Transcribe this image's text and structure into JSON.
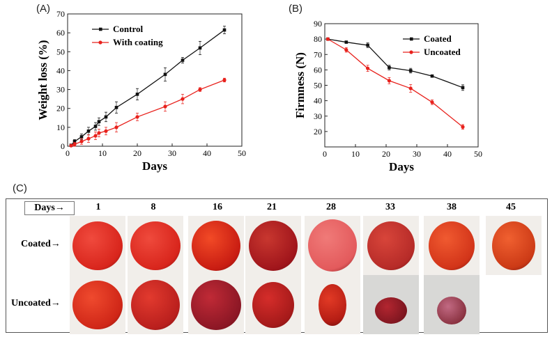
{
  "panels": {
    "a": "(A)",
    "b": "(B)",
    "c": "(C)"
  },
  "chart_data": [
    {
      "type": "line",
      "panel": "(A)",
      "xlabel": "Days",
      "ylabel": "Weight loss (%)",
      "xlim": [
        0,
        50
      ],
      "ylim": [
        0,
        70
      ],
      "xticks": [
        0,
        10,
        20,
        30,
        40,
        50
      ],
      "yticks": [
        0,
        10,
        20,
        30,
        40,
        50,
        60,
        70
      ],
      "legend": "top-left",
      "series": [
        {
          "name": "Control",
          "color": "#111111",
          "marker": "square",
          "x": [
            1,
            2,
            4,
            6,
            8,
            9,
            11,
            14,
            20,
            28,
            33,
            38,
            45
          ],
          "y": [
            0.5,
            2.5,
            5,
            8,
            10.5,
            13,
            15.5,
            20.5,
            27.5,
            38,
            45.5,
            52,
            61.5
          ],
          "err": [
            0.5,
            1,
            1.5,
            2,
            2,
            2,
            2.5,
            3,
            3,
            3.5,
            1.5,
            3.5,
            2
          ]
        },
        {
          "name": "With coating",
          "color": "#e8211c",
          "marker": "circle",
          "x": [
            1,
            2,
            4,
            6,
            8,
            9,
            11,
            14,
            20,
            28,
            33,
            38,
            45
          ],
          "y": [
            0.3,
            1,
            2.5,
            4,
            5.5,
            7,
            8,
            10,
            15.5,
            21,
            25,
            30,
            35
          ],
          "err": [
            0.5,
            1,
            1.5,
            2,
            2,
            2,
            2,
            2.5,
            2,
            2.5,
            2.5,
            1,
            1
          ]
        }
      ]
    },
    {
      "type": "line",
      "panel": "(B)",
      "xlabel": "Days",
      "ylabel": "Firmness (N)",
      "xlim": [
        0,
        50
      ],
      "ylim": [
        10,
        90
      ],
      "xticks": [
        0,
        10,
        20,
        30,
        40,
        50
      ],
      "yticks": [
        20,
        30,
        40,
        50,
        60,
        70,
        80,
        90
      ],
      "legend": "top-right",
      "series": [
        {
          "name": "Coated",
          "color": "#111111",
          "marker": "square",
          "x": [
            1,
            7,
            14,
            21,
            28,
            35,
            45
          ],
          "y": [
            80,
            78,
            76,
            61.5,
            59.5,
            56,
            48.5
          ],
          "err": [
            0.5,
            0.5,
            1.5,
            1.5,
            1.5,
            0.8,
            1.8
          ]
        },
        {
          "name": "Uncoated",
          "color": "#e8211c",
          "marker": "circle",
          "x": [
            1,
            7,
            14,
            21,
            28,
            35,
            45
          ],
          "y": [
            80,
            73,
            61,
            53,
            48,
            39,
            23
          ],
          "err": [
            0.5,
            1.5,
            2,
            2,
            2.5,
            1.5,
            1.5
          ]
        }
      ]
    }
  ],
  "photo_grid": {
    "days_header": "Days→",
    "days": [
      "1",
      "8",
      "16",
      "21",
      "28",
      "33",
      "38",
      "45"
    ],
    "row_coated": "Coated→",
    "row_uncoated": "Uncoated→"
  },
  "colors": {
    "tomato_red": "#d8251c",
    "tomato_deep": "#a0151b",
    "tomato_pink": "#e35a5c",
    "tomato_purple": "#8c3443"
  }
}
